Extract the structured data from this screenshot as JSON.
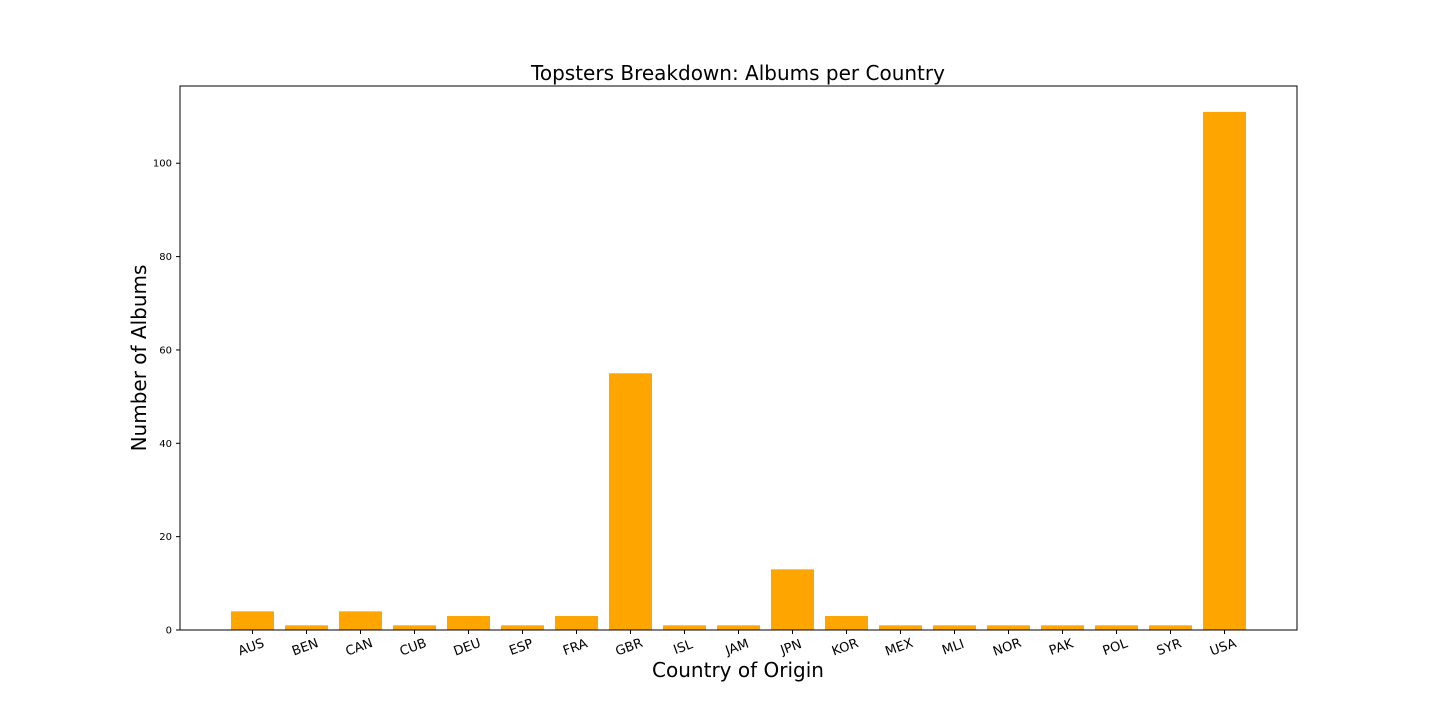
{
  "chart_data": {
    "type": "bar",
    "title": "Topsters Breakdown: Albums per Country",
    "xlabel": "Country of Origin",
    "ylabel": "Number of Albums",
    "categories": [
      "AUS",
      "BEN",
      "CAN",
      "CUB",
      "DEU",
      "ESP",
      "FRA",
      "GBR",
      "ISL",
      "JAM",
      "JPN",
      "KOR",
      "MEX",
      "MLI",
      "NOR",
      "PAK",
      "POL",
      "SYR",
      "USA"
    ],
    "values": [
      4,
      1,
      4,
      1,
      3,
      1,
      3,
      55,
      1,
      1,
      13,
      3,
      1,
      1,
      1,
      1,
      1,
      1,
      111
    ],
    "yticks": [
      0,
      20,
      40,
      60,
      80,
      100
    ],
    "ylim": [
      0,
      116.55
    ],
    "bar_color": "#ffa500",
    "grid": false,
    "legend": "none",
    "xtick_rotation_deg": -20
  }
}
